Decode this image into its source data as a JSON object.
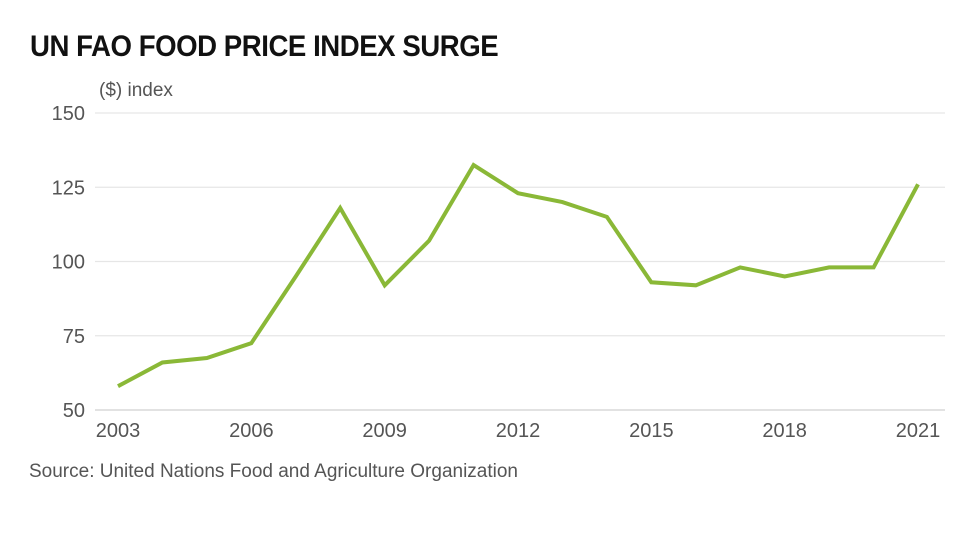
{
  "chart_data": {
    "type": "line",
    "title": "UN FAO FOOD PRICE INDEX SURGE",
    "ylabel": "($) index",
    "xlabel": "",
    "source": "Source: United Nations Food and Agriculture Organization",
    "ylim": [
      50,
      150
    ],
    "yticks": [
      50,
      75,
      100,
      125,
      150
    ],
    "xlim": [
      2003,
      2021
    ],
    "xticks": [
      2003,
      2006,
      2009,
      2012,
      2015,
      2018,
      2021
    ],
    "grid": true,
    "series": [
      {
        "name": "FAO Food Price Index",
        "color": "#8ab837",
        "x": [
          2003,
          2004,
          2005,
          2006,
          2007,
          2008,
          2009,
          2010,
          2011,
          2012,
          2013,
          2014,
          2015,
          2016,
          2017,
          2018,
          2019,
          2020,
          2021
        ],
        "values": [
          58,
          66,
          67.5,
          72.5,
          95,
          118,
          92,
          107,
          132.5,
          123,
          120,
          115,
          93,
          92,
          98,
          95,
          98,
          98,
          126
        ]
      }
    ]
  }
}
